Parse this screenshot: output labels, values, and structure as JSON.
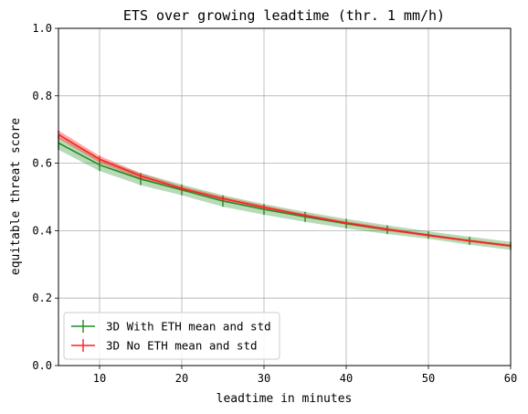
{
  "chart_data": {
    "type": "line",
    "title": "ETS over growing leadtime (thr. 1 mm/h)",
    "xlabel": "leadtime in minutes",
    "ylabel": "equitable threat score",
    "xlim": [
      5,
      60
    ],
    "ylim": [
      0.0,
      1.0
    ],
    "xticks": [
      "10",
      "20",
      "30",
      "40",
      "50",
      "60"
    ],
    "yticks": [
      "0.0",
      "0.2",
      "0.4",
      "0.6",
      "0.8",
      "1.0"
    ],
    "grid": true,
    "legend_position": "lower-left",
    "x": [
      5,
      10,
      15,
      20,
      25,
      30,
      35,
      40,
      45,
      50,
      55,
      60
    ],
    "series": [
      {
        "name": "3D With ETH mean and std",
        "color": "#228b22",
        "mean": [
          0.66,
          0.595,
          0.553,
          0.521,
          0.488,
          0.463,
          0.441,
          0.421,
          0.403,
          0.387,
          0.37,
          0.355
        ],
        "std": [
          0.02,
          0.018,
          0.018,
          0.016,
          0.017,
          0.016,
          0.015,
          0.014,
          0.013,
          0.011,
          0.012,
          0.012
        ]
      },
      {
        "name": "3D No ETH mean and std",
        "color": "#ff2020",
        "mean": [
          0.685,
          0.612,
          0.562,
          0.525,
          0.495,
          0.469,
          0.445,
          0.423,
          0.404,
          0.386,
          0.37,
          0.355
        ],
        "std": [
          0.012,
          0.01,
          0.008,
          0.007,
          0.006,
          0.006,
          0.005,
          0.005,
          0.005,
          0.004,
          0.004,
          0.004
        ]
      }
    ]
  }
}
